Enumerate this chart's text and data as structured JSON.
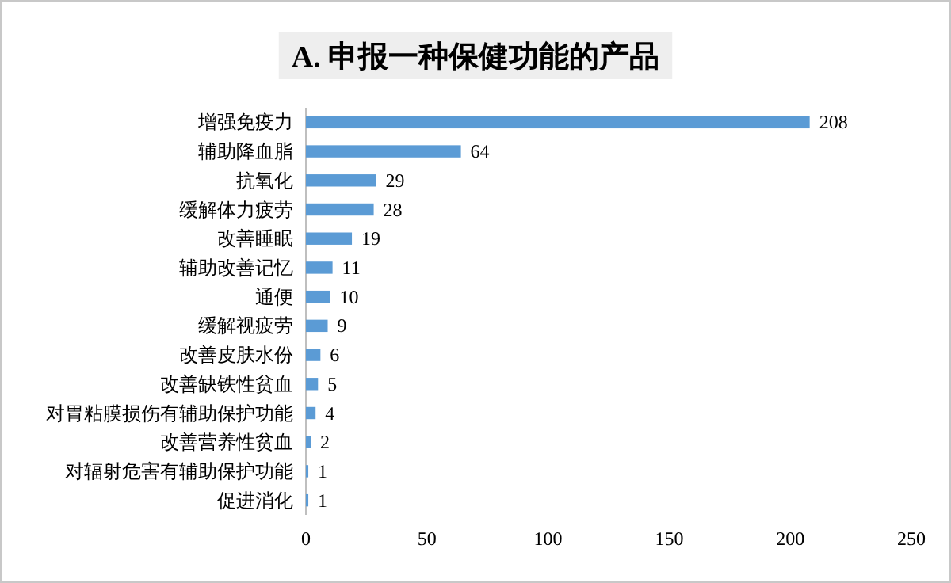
{
  "chart_data": {
    "type": "bar",
    "orientation": "horizontal",
    "title": "A. 申报一种保健功能的产品",
    "categories": [
      "增强免疫力",
      "辅助降血脂",
      "抗氧化",
      "缓解体力疲劳",
      "改善睡眠",
      "辅助改善记忆",
      "通便",
      "缓解视疲劳",
      "改善皮肤水份",
      "改善缺铁性贫血",
      "对胃粘膜损伤有辅助保护功能",
      "改善营养性贫血",
      "对辐射危害有辅助保护功能",
      "促进消化"
    ],
    "values": [
      208,
      64,
      29,
      28,
      19,
      11,
      10,
      9,
      6,
      5,
      4,
      2,
      1,
      1
    ],
    "color": "#5b9bd5",
    "xlim": [
      0,
      250
    ],
    "xticks": [
      0,
      50,
      100,
      150,
      200,
      250
    ],
    "data_labels": true,
    "grid": false
  }
}
